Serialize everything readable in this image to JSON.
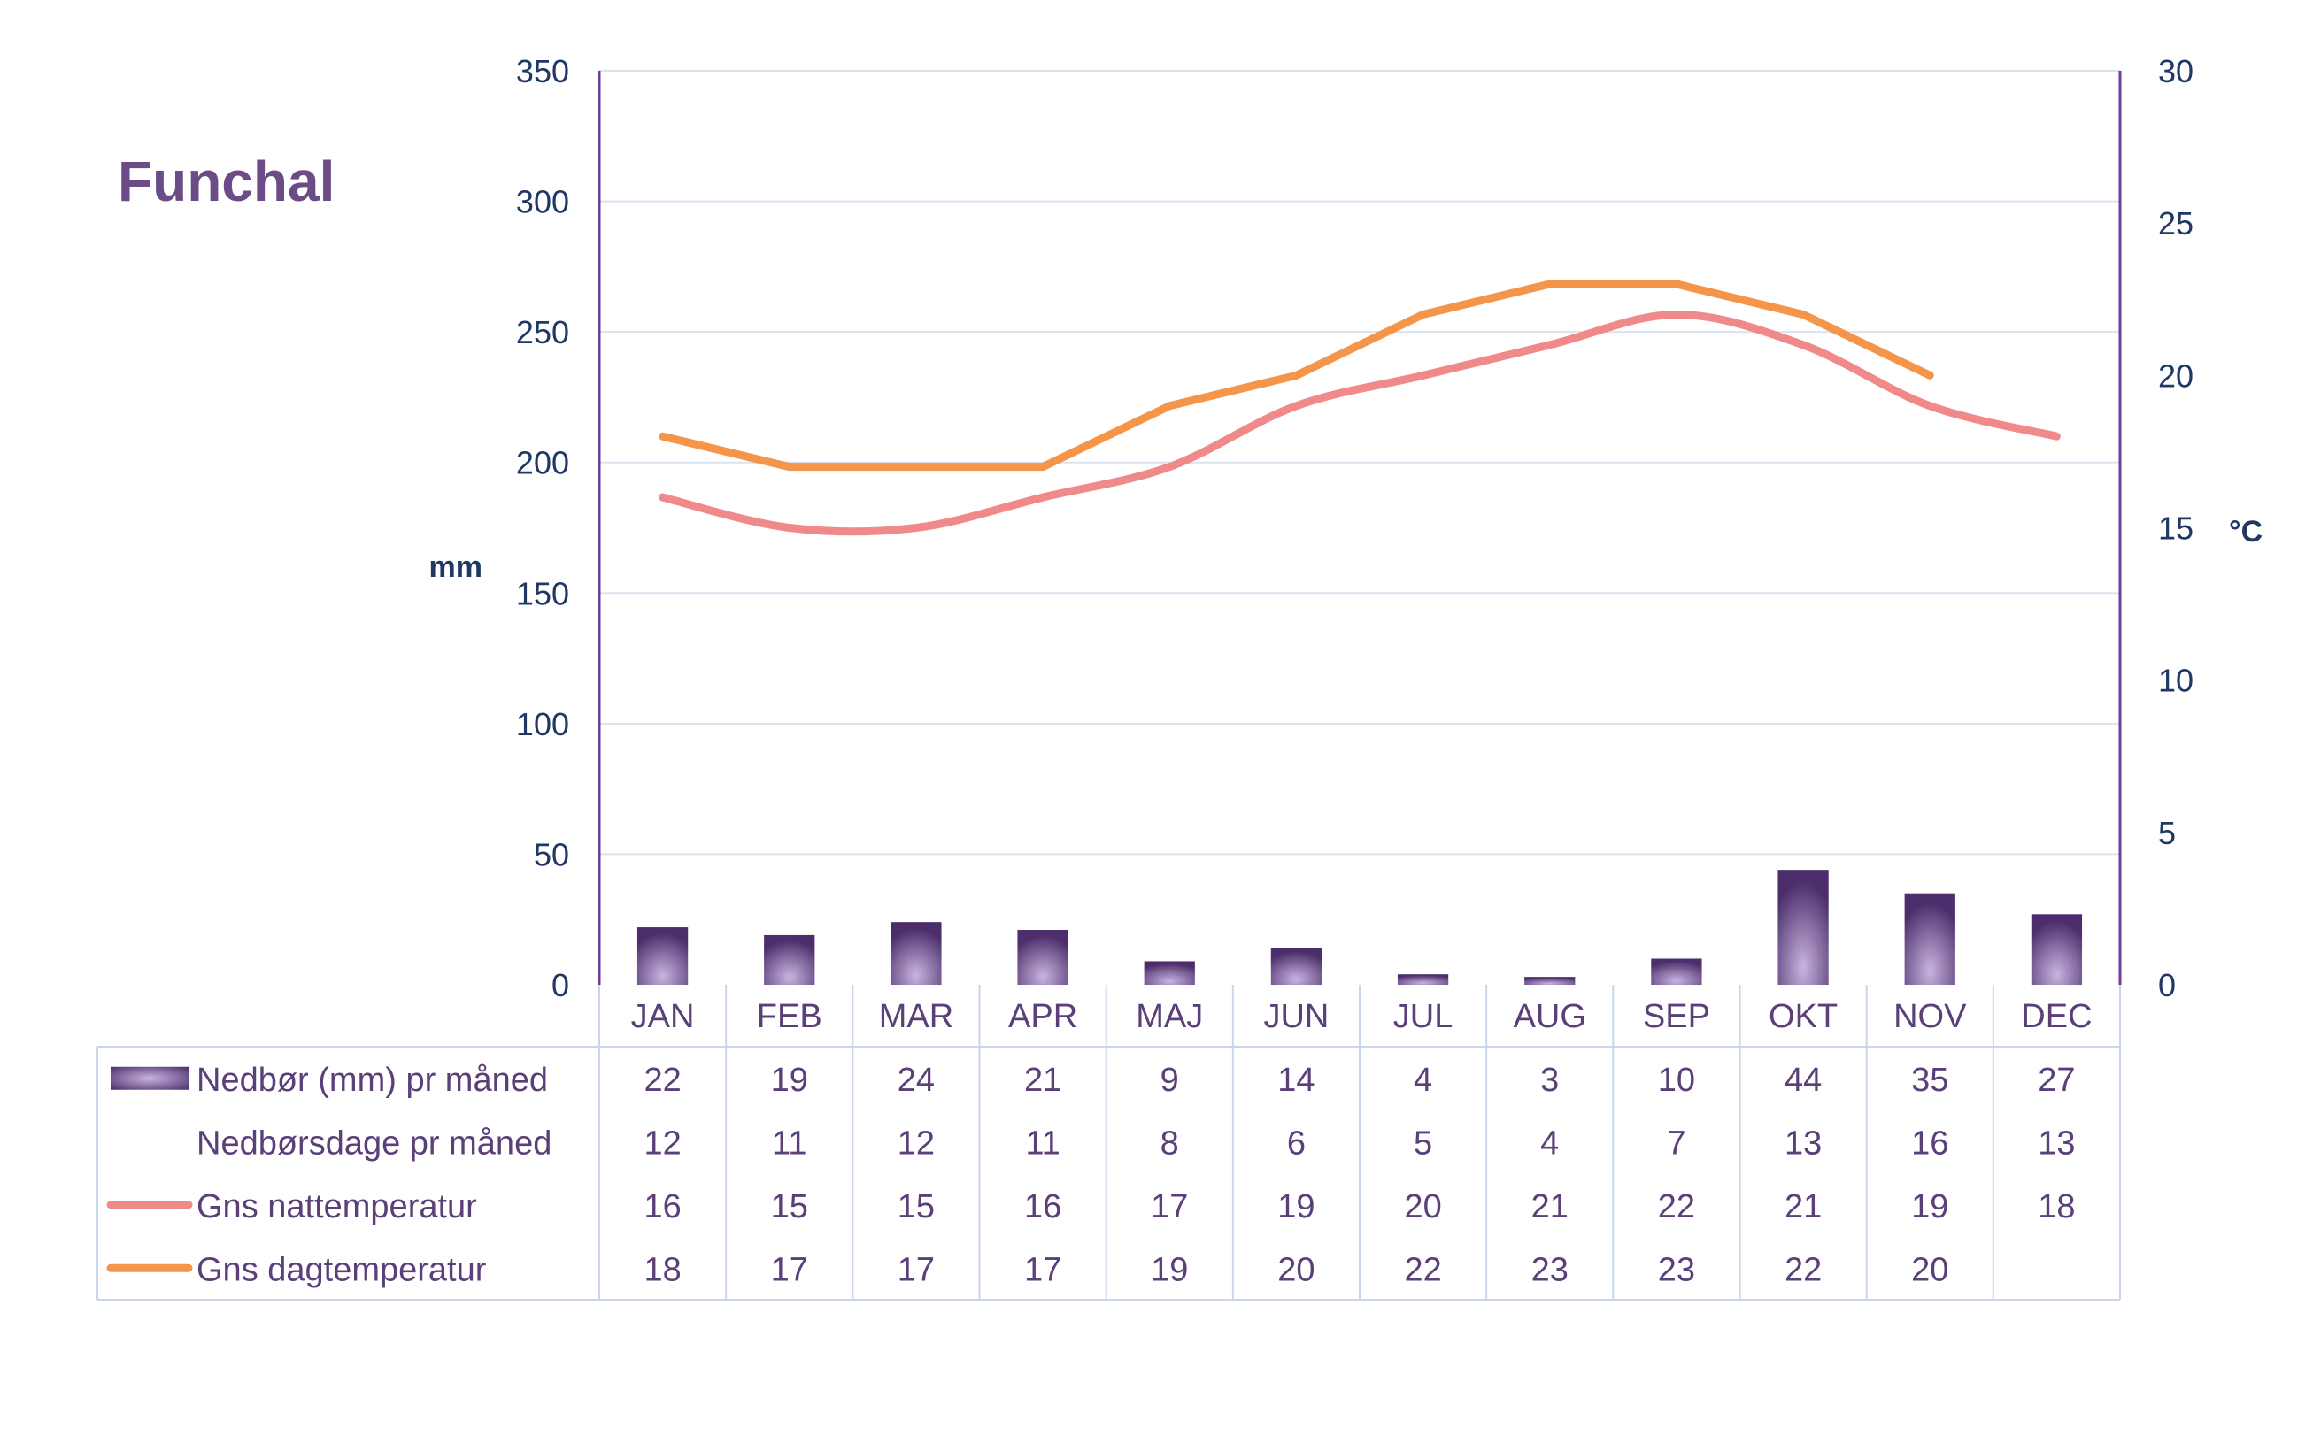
{
  "title": "Funchal",
  "colors": {
    "title": "#6b4c86",
    "axis_text": "#1f3864",
    "axis_line": "#6a3d9a",
    "grid": "#d9e3f0",
    "table_text": "#5b3f78",
    "table_border": "#c9d6ea",
    "bar_dark": "#4b2e6b",
    "bar_light": "#c9b4e0",
    "night_line": "#f08a8a",
    "day_line": "#f4954a"
  },
  "chart_data": {
    "type": "bar+line",
    "title": "Funchal",
    "categories": [
      "JAN",
      "FEB",
      "MAR",
      "APR",
      "MAJ",
      "JUN",
      "JUL",
      "AUG",
      "SEP",
      "OKT",
      "NOV",
      "DEC"
    ],
    "left_axis": {
      "label": "mm",
      "ylim": [
        0,
        350
      ],
      "ticks": [
        0,
        50,
        100,
        150,
        200,
        250,
        300,
        350
      ]
    },
    "right_axis": {
      "label": "°C",
      "ylim": [
        0,
        30
      ],
      "ticks": [
        0,
        5,
        10,
        15,
        20,
        25,
        30
      ]
    },
    "grid": true,
    "series": [
      {
        "name": "Nedbør (mm) pr måned",
        "type": "bar",
        "axis": "left",
        "values": [
          22,
          19,
          24,
          21,
          9,
          14,
          4,
          3,
          10,
          44,
          35,
          27
        ]
      },
      {
        "name": "Nedbørsdage pr måned",
        "type": "table-only",
        "values": [
          12,
          11,
          12,
          11,
          8,
          6,
          5,
          4,
          7,
          13,
          16,
          13
        ]
      },
      {
        "name": "Gns nattemperatur",
        "type": "line",
        "axis": "right",
        "values": [
          16,
          15,
          15,
          16,
          17,
          19,
          20,
          21,
          22,
          21,
          19,
          18
        ]
      },
      {
        "name": "Gns dagtemperatur",
        "type": "line",
        "axis": "right",
        "values": [
          18,
          17,
          17,
          17,
          19,
          20,
          22,
          23,
          23,
          22,
          20,
          null
        ]
      }
    ]
  }
}
